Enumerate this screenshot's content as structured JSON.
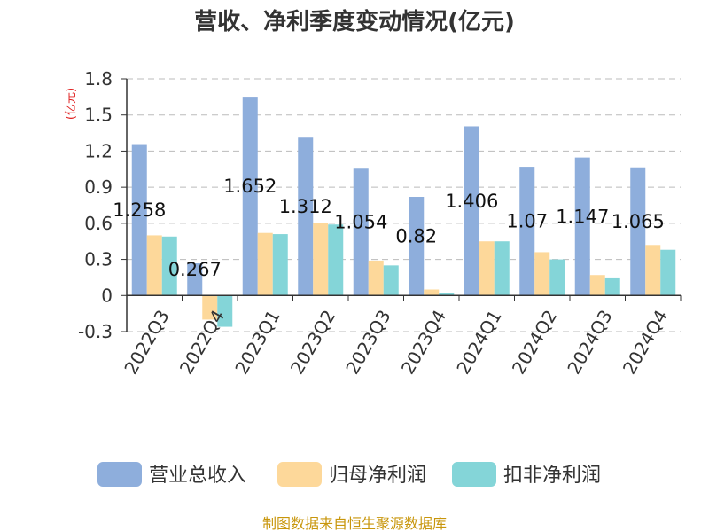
{
  "chart_data": {
    "type": "bar",
    "title": "营收、净利季度变动情况(亿元)",
    "ylabel": "(亿元)",
    "ylim": [
      -0.3,
      1.8
    ],
    "yticks": [
      "1.8",
      "1.5",
      "1.2",
      "0.9",
      "0.6",
      "0.3",
      "0",
      "-0.3"
    ],
    "grid": true,
    "legend_position": "bottom",
    "categories": [
      "2022Q3",
      "2022Q4",
      "2023Q1",
      "2023Q2",
      "2023Q3",
      "2023Q4",
      "2024Q1",
      "2024Q2",
      "2024Q3",
      "2024Q4"
    ],
    "series": [
      {
        "name": "营业总收入",
        "color": "#8eaedc",
        "values": [
          1.258,
          0.267,
          1.652,
          1.312,
          1.054,
          0.82,
          1.406,
          1.07,
          1.147,
          1.065
        ],
        "labels": [
          "1.258",
          "0.267",
          "1.652",
          "1.312",
          "1.054",
          "0.82",
          "1.406",
          "1.07",
          "1.147",
          "1.065"
        ]
      },
      {
        "name": "归母净利润",
        "color": "#fdd89a",
        "values": [
          0.5,
          -0.2,
          0.52,
          0.6,
          0.29,
          0.05,
          0.45,
          0.36,
          0.17,
          0.42
        ]
      },
      {
        "name": "扣非净利润",
        "color": "#84d5d8",
        "values": [
          0.49,
          -0.26,
          0.51,
          0.59,
          0.25,
          0.02,
          0.45,
          0.3,
          0.15,
          0.38
        ]
      }
    ],
    "source": "制图数据来自恒生聚源数据库"
  }
}
